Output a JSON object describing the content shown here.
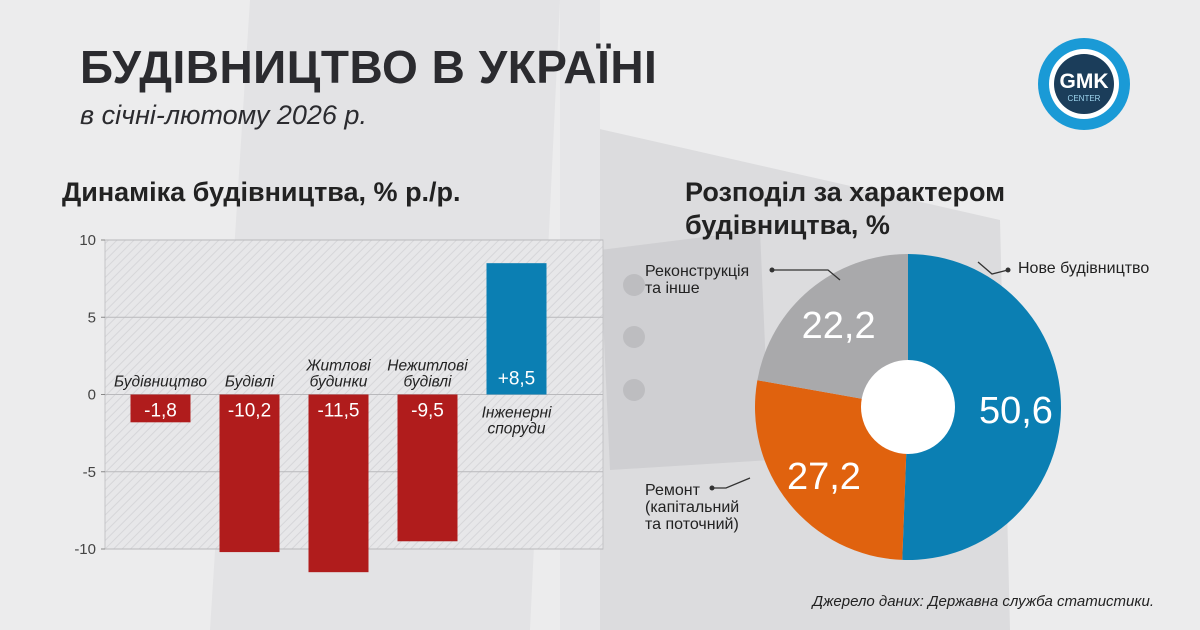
{
  "header": {
    "title": "БУДІВНИЦТВО В УКРАЇНІ",
    "subtitle": "в січні-лютому 2026 р."
  },
  "logo": {
    "brand": "GMK",
    "sub": "CENTER",
    "colors": {
      "ring": "#1a9ad6",
      "inner": "#1b3d5a"
    }
  },
  "source": "Джерело даних: Державна служба статистики.",
  "colors": {
    "negative_bar": "#b01c1c",
    "positive_bar": "#0b7fb3",
    "pie_new": "#0b7fb3",
    "pie_repair": "#e0620e",
    "pie_reconstruction": "#a9a9ab"
  },
  "chart_data": [
    {
      "type": "bar",
      "title": "Динаміка будівництва, % р./р.",
      "categories": [
        [
          "Будівництво"
        ],
        [
          "Будівлі"
        ],
        [
          "Житлові",
          "будинки"
        ],
        [
          "Нежитлові",
          "будівлі"
        ],
        [
          "Інженерні",
          "споруди"
        ]
      ],
      "values": [
        -1.8,
        -10.2,
        -11.5,
        -9.5,
        8.5
      ],
      "value_labels": [
        "-1,8",
        "-10,2",
        "-11,5",
        "-9,5",
        "+8,5"
      ],
      "ylim": [
        -10,
        10
      ],
      "yticks": [
        10,
        5,
        0,
        -5,
        -10
      ],
      "ytick_labels": [
        "10",
        "5",
        "0",
        "-5",
        "-10"
      ],
      "grid": true
    },
    {
      "type": "pie",
      "title": "Розподіл за характером будівництва, %",
      "slices": [
        {
          "key": "new",
          "label": [
            "Нове будівництво"
          ],
          "value": 50.6,
          "value_label": "50,6"
        },
        {
          "key": "repair",
          "label": [
            "Ремонт",
            "(капітальний",
            "та поточний)"
          ],
          "value": 27.2,
          "value_label": "27,2"
        },
        {
          "key": "reconstruction",
          "label": [
            "Реконструкція",
            "та інше"
          ],
          "value": 22.2,
          "value_label": "22,2"
        }
      ]
    }
  ]
}
